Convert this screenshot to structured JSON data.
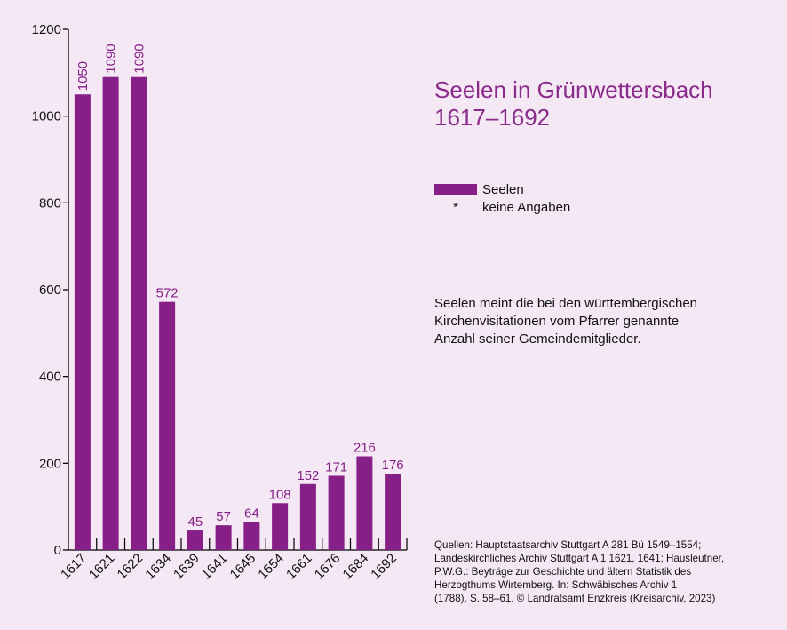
{
  "title_line1": "Seelen in Grünwettersbach",
  "title_line2": "1617–1692",
  "legend": {
    "series_label": "Seelen",
    "na_symbol": "*",
    "na_label": "keine Angaben"
  },
  "note_lines": [
    "Seelen meint die bei den württembergischen",
    "Kirchenvisitationen vom Pfarrer genannte",
    "Anzahl seiner Gemeindemitglieder."
  ],
  "sources_lines": [
    "Quellen: Hauptstaatsarchiv Stuttgart A 281 Bü 1549–1554;",
    "Landeskirchliches Archiv Stuttgart A 1 1621, 1641; Hausleutner,",
    "P.W.G.: Beyträge zur Geschichte und ältern Statistik des",
    "Herzogthums Wirtemberg. In: Schwäbisches Archiv 1",
    "(1788), S. 58–61. © Landratsamt Enzkreis (Kreisarchiv, 2023)"
  ],
  "colors": {
    "bar": "#861f86",
    "label": "#861f86",
    "background": "#f4e8f4",
    "axis": "#000000"
  },
  "chart_data": {
    "type": "bar",
    "categories": [
      "1617",
      "1621",
      "1622",
      "1634",
      "1639",
      "1641",
      "1645",
      "1654",
      "1661",
      "1676",
      "1684",
      "1692"
    ],
    "values": [
      1050,
      1090,
      1090,
      572,
      45,
      57,
      64,
      108,
      152,
      171,
      216,
      176
    ],
    "ylim": [
      0,
      1200
    ],
    "yticks": [
      0,
      200,
      400,
      600,
      800,
      1000,
      1200
    ],
    "grid": false,
    "legend_placement": "right"
  }
}
